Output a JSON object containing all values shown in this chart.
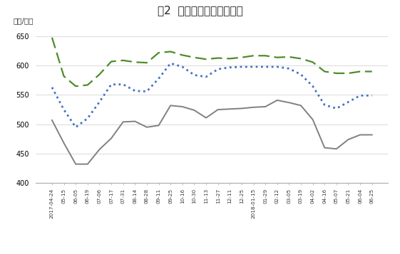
{
  "title": "图2  秦皇岛港煤炭价格情况",
  "ylabel": "（元/吨）",
  "ylim": [
    400,
    660
  ],
  "yticks": [
    400,
    450,
    500,
    550,
    600,
    650
  ],
  "x_labels": [
    "2017-04-24",
    "05-15",
    "06-05",
    "06-19",
    "07-06",
    "07-17",
    "07-31",
    "08-14",
    "08-28",
    "09-11",
    "09-25",
    "10-16",
    "10-30",
    "11-13",
    "11-27",
    "12-11",
    "12-25",
    "2018-01-15",
    "01-29",
    "02-12",
    "03-05",
    "03-19",
    "04-02",
    "04-16",
    "05-07",
    "05-21",
    "06-04",
    "06-25"
  ],
  "series_5500": [
    648,
    582,
    565,
    567,
    585,
    607,
    609,
    606,
    605,
    622,
    624,
    618,
    614,
    611,
    613,
    612,
    614,
    617,
    617,
    614,
    615,
    612,
    606,
    590,
    587,
    587,
    590,
    590
  ],
  "series_5000": [
    563,
    525,
    495,
    510,
    538,
    568,
    568,
    557,
    556,
    578,
    604,
    598,
    584,
    581,
    594,
    597,
    598,
    598,
    598,
    598,
    595,
    585,
    565,
    533,
    527,
    538,
    549,
    549
  ],
  "series_4500": [
    507,
    468,
    432,
    432,
    457,
    476,
    504,
    505,
    495,
    498,
    532,
    530,
    524,
    511,
    525,
    526,
    527,
    529,
    530,
    541,
    537,
    532,
    508,
    460,
    458,
    474,
    482,
    482
  ],
  "color_5500": "#4d8c2c",
  "color_5000": "#4472c4",
  "color_4500": "#808080",
  "bg_color": "#ffffff"
}
